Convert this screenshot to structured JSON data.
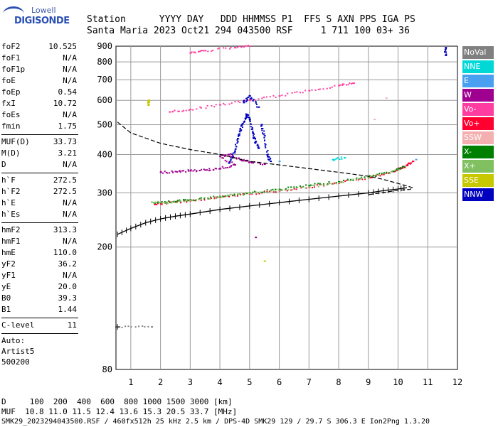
{
  "logo": {
    "line1": "Lowell",
    "line2": "DIGISONDE"
  },
  "header": {
    "line1": "Station      YYYY DAY   DDD HHMMSS P1  FFS S AXN PPS IGA PS",
    "line2": "Santa Maria 2023 Oct21 294 043500 RSF     1 711 100 03+ 36"
  },
  "params": {
    "group1": [
      {
        "k": "foF2",
        "v": "10.525"
      },
      {
        "k": "foF1",
        "v": "N/A"
      },
      {
        "k": "foF1p",
        "v": "N/A"
      },
      {
        "k": "foE",
        "v": "N/A"
      },
      {
        "k": "foEp",
        "v": "0.54"
      },
      {
        "k": "fxI",
        "v": "10.72"
      },
      {
        "k": "foEs",
        "v": "N/A"
      },
      {
        "k": "fmin",
        "v": "1.75"
      }
    ],
    "group2": [
      {
        "k": "MUF(D)",
        "v": "33.73"
      },
      {
        "k": "M(D)",
        "v": "3.21"
      },
      {
        "k": "D",
        "v": "N/A"
      }
    ],
    "group3": [
      {
        "k": "h`F",
        "v": "272.5"
      },
      {
        "k": "h`F2",
        "v": "272.5"
      },
      {
        "k": "h`E",
        "v": "N/A"
      },
      {
        "k": "h`Es",
        "v": "N/A"
      }
    ],
    "group4": [
      {
        "k": "hmF2",
        "v": "313.3"
      },
      {
        "k": "hmF1",
        "v": "N/A"
      },
      {
        "k": "hmE",
        "v": "110.0"
      },
      {
        "k": "yF2",
        "v": "36.2"
      },
      {
        "k": "yF1",
        "v": "N/A"
      },
      {
        "k": "yE",
        "v": "20.0"
      },
      {
        "k": "B0",
        "v": "39.3"
      },
      {
        "k": "B1",
        "v": "1.44"
      }
    ],
    "group5": [
      {
        "k": "C-level",
        "v": "11"
      }
    ],
    "auto": [
      "Auto:",
      "Artist5",
      "500200"
    ]
  },
  "legend": [
    {
      "label": "NoVal",
      "color": "#808080"
    },
    {
      "label": "NNE",
      "color": "#00d8d8"
    },
    {
      "label": "E",
      "color": "#4aa0f0"
    },
    {
      "label": "W",
      "color": "#a00090"
    },
    {
      "label": "Vo-",
      "color": "#ff3ca0"
    },
    {
      "label": "Vo+",
      "color": "#ff0030"
    },
    {
      "label": "SSW",
      "color": "#f4b0b0"
    },
    {
      "label": "X-",
      "color": "#008000"
    },
    {
      "label": "X+",
      "color": "#80c060"
    },
    {
      "label": "SSE",
      "color": "#c8c800"
    },
    {
      "label": "NNW",
      "color": "#0000c0"
    }
  ],
  "footer": {
    "line1": "D     100  200  400  600  800 1000 1500 3000 [km]",
    "line2": "MUF  10.8 11.0 11.5 12.4 13.6 15.3 20.5 33.7 [MHz]",
    "line3": "SMK29_2023294043500.RSF / 460fx512h 25 kHz 2.5 km / DPS-4D SMK29 129 / 29.7 S 306.3 E Ion2Png 1.3.20"
  },
  "chart_data": {
    "type": "scatter",
    "title": "",
    "xlabel": "",
    "ylabel": "",
    "xlim": [
      0.5,
      12.0
    ],
    "ylim": [
      80,
      900
    ],
    "x_ticks": [
      1,
      2,
      3,
      4,
      5,
      6,
      7,
      8,
      9,
      10,
      11,
      12
    ],
    "y_ticks": [
      80,
      200,
      300,
      400,
      500,
      600,
      700,
      800,
      900
    ],
    "y_scale": "log",
    "grid": true,
    "series": [
      {
        "name": "Vo+",
        "color": "#ff0030",
        "points": [
          [
            1.8,
            275
          ],
          [
            2.5,
            280
          ],
          [
            3,
            283
          ],
          [
            4,
            290
          ],
          [
            5,
            298
          ],
          [
            6,
            305
          ],
          [
            7,
            313
          ],
          [
            8,
            323
          ],
          [
            9,
            336
          ],
          [
            9.5,
            345
          ],
          [
            10,
            358
          ],
          [
            10.3,
            368
          ],
          [
            10.5,
            380
          ]
        ]
      },
      {
        "name": "X-",
        "color": "#008000",
        "points": [
          [
            1.8,
            278
          ],
          [
            2.5,
            281
          ],
          [
            3,
            285
          ],
          [
            4,
            292
          ],
          [
            5,
            300
          ],
          [
            6,
            308
          ],
          [
            7,
            317
          ],
          [
            8,
            326
          ],
          [
            9,
            338
          ],
          [
            9.8,
            352
          ],
          [
            10.2,
            365
          ]
        ]
      },
      {
        "name": "X+",
        "color": "#80c060",
        "points": [
          [
            1.7,
            280
          ],
          [
            2.2,
            278
          ],
          [
            3,
            284
          ],
          [
            4,
            291
          ],
          [
            5,
            299
          ],
          [
            6,
            306
          ],
          [
            7,
            314
          ],
          [
            8,
            324
          ],
          [
            9,
            336
          ],
          [
            10,
            356
          ]
        ]
      },
      {
        "name": "Vo-",
        "color": "#ff3ca0",
        "points": [
          [
            2.3,
            550
          ],
          [
            3,
            560
          ],
          [
            4,
            580
          ],
          [
            5,
            600
          ],
          [
            6,
            620
          ],
          [
            7,
            645
          ],
          [
            8,
            670
          ],
          [
            8.5,
            682
          ],
          [
            3,
            855
          ],
          [
            3.5,
            870
          ],
          [
            4.5,
            890
          ],
          [
            5,
            900
          ]
        ]
      },
      {
        "name": "W",
        "color": "#a00090",
        "points": [
          [
            2,
            350
          ],
          [
            2.5,
            352
          ],
          [
            3,
            354
          ],
          [
            3.5,
            356
          ],
          [
            4,
            360
          ],
          [
            4.5,
            370
          ],
          [
            4,
            395
          ],
          [
            4.3,
            400
          ],
          [
            4.7,
            385
          ],
          [
            5,
            378
          ],
          [
            5.5,
            372
          ],
          [
            5.2,
            215
          ]
        ]
      },
      {
        "name": "NNW",
        "color": "#0000c0",
        "points": [
          [
            4.3,
            375
          ],
          [
            4.5,
            410
          ],
          [
            4.6,
            450
          ],
          [
            4.7,
            480
          ],
          [
            4.8,
            510
          ],
          [
            4.9,
            540
          ],
          [
            5,
            520
          ],
          [
            5.1,
            470
          ],
          [
            5.2,
            440
          ],
          [
            5.3,
            420
          ],
          [
            5.4,
            500
          ],
          [
            5.5,
            460
          ],
          [
            5.6,
            400
          ],
          [
            5.7,
            380
          ],
          [
            4.8,
            590
          ],
          [
            5,
            620
          ],
          [
            5.3,
            570
          ],
          [
            11.6,
            890
          ],
          [
            11.6,
            840
          ]
        ]
      },
      {
        "name": "NNE",
        "color": "#00d8d8",
        "points": [
          [
            7.8,
            385
          ],
          [
            8.2,
            390
          ]
        ]
      },
      {
        "name": "E",
        "color": "#4aa0f0",
        "points": [
          [
            6,
            380
          ],
          [
            10.6,
            385
          ]
        ]
      },
      {
        "name": "SSE",
        "color": "#c8c800",
        "points": [
          [
            1.6,
            600
          ],
          [
            1.6,
            580
          ],
          [
            5.5,
            180
          ]
        ]
      },
      {
        "name": "SSW",
        "color": "#f4b0b0",
        "points": [
          [
            9.2,
            520
          ],
          [
            9.6,
            610
          ]
        ]
      },
      {
        "name": "NoVal",
        "color": "#808080",
        "points": [
          [
            0.6,
            110
          ],
          [
            1.7,
            110
          ]
        ]
      }
    ],
    "profile_curve": {
      "points": [
        [
          0.55,
          510
        ],
        [
          1,
          470
        ],
        [
          2,
          435
        ],
        [
          3,
          415
        ],
        [
          4,
          400
        ],
        [
          5,
          380
        ],
        [
          6,
          370
        ],
        [
          7,
          360
        ],
        [
          8,
          350
        ],
        [
          9,
          340
        ],
        [
          9.5,
          332
        ],
        [
          10,
          322
        ],
        [
          10.3,
          316
        ],
        [
          10.5,
          312
        ],
        [
          10.4,
          308
        ],
        [
          10,
          306
        ],
        [
          9,
          296
        ]
      ]
    },
    "trace_curve": {
      "points": [
        [
          0.55,
          220
        ],
        [
          1,
          230
        ],
        [
          1.5,
          240
        ],
        [
          2,
          247
        ],
        [
          2.5,
          252
        ],
        [
          3,
          256
        ],
        [
          4,
          265
        ],
        [
          5,
          272
        ],
        [
          6,
          279
        ],
        [
          7,
          286
        ],
        [
          8,
          293
        ],
        [
          9,
          300
        ],
        [
          9.5,
          305
        ],
        [
          10,
          309
        ],
        [
          10.3,
          312
        ]
      ]
    },
    "small_marker": {
      "points": [
        [
          0.55,
          110
        ]
      ]
    }
  }
}
